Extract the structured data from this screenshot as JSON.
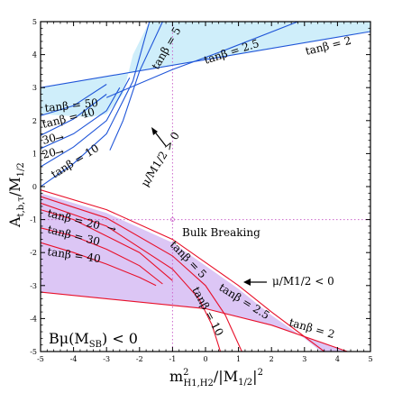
{
  "chart_data": {
    "type": "line",
    "xlim": [
      -5,
      5
    ],
    "ylim": [
      -5,
      5
    ],
    "xticks": [
      "-5",
      "-4",
      "-3",
      "-2",
      "-1",
      "0",
      "1",
      "2",
      "3",
      "4",
      "5"
    ],
    "yticks": [
      "-5",
      "-4",
      "-3",
      "-2",
      "-1",
      "0",
      "1",
      "2",
      "3",
      "4",
      "5"
    ],
    "xlabel_main": "m",
    "xlabel_sup": "2",
    "xlabel_sub": "H1,H2",
    "xlabel_rest": "/|M",
    "xlabel_sub2": "1/2",
    "xlabel_end": "|",
    "xlabel_sup2": "2",
    "ylabel_main": "A",
    "ylabel_sub": "t,b,τ",
    "ylabel_rest": "/M",
    "ylabel_sub2": "1/2",
    "reference_lines": {
      "x": -1,
      "y": -1,
      "color": "#cc66cc"
    },
    "colors": {
      "upper_fill": "#cfeefa",
      "lower_fill": "#dcc6f5",
      "upper_line": "#1f55d8",
      "lower_line": "#e8102a"
    },
    "upper_region": {
      "boundary_top": [
        [
          -5,
          3
        ],
        [
          5,
          4.7
        ]
      ],
      "boundary_bottom": [
        [
          -5,
          2.2
        ],
        [
          -3.5,
          2.1
        ],
        [
          -3,
          2.2
        ],
        [
          -2.5,
          2.8
        ],
        [
          -2.2,
          4
        ],
        [
          -1.7,
          5
        ]
      ],
      "curves": [
        {
          "name": "tanβ = 2",
          "points": [
            [
              -5,
              3
            ],
            [
              5,
              4.7
            ]
          ]
        },
        {
          "name": "tanβ = 2.5",
          "points": [
            [
              -3,
              2.7
            ],
            [
              -1,
              3.55
            ],
            [
              0.5,
              4.1
            ],
            [
              2.8,
              5
            ]
          ]
        },
        {
          "name": "tanβ = 5",
          "points": [
            [
              -2.9,
              1.1
            ],
            [
              -2.5,
              2.0
            ],
            [
              -2.0,
              3.5
            ],
            [
              -1.3,
              5
            ]
          ]
        },
        {
          "name": "tanβ = 10",
          "points": [
            [
              -5,
              0
            ],
            [
              -4,
              0.7
            ],
            [
              -3,
              1.6
            ],
            [
              -2.2,
              3.2
            ],
            [
              -1.7,
              5
            ]
          ]
        },
        {
          "name": "tanβ = 20",
          "points": [
            [
              -5,
              0.6
            ],
            [
              -4,
              1.2
            ],
            [
              -3,
              2.0
            ],
            [
              -2.3,
              3.3
            ]
          ]
        },
        {
          "name": "tanβ = 30",
          "points": [
            [
              -5,
              1.15
            ],
            [
              -4,
              1.6
            ],
            [
              -3,
              2.3
            ],
            [
              -2.6,
              3.0
            ]
          ]
        },
        {
          "name": "tanβ = 40",
          "points": [
            [
              -5,
              1.55
            ],
            [
              -4,
              2.05
            ],
            [
              -3,
              2.8
            ]
          ]
        },
        {
          "name": "tanβ = 50",
          "points": [
            [
              -5,
              2.15
            ],
            [
              -4,
              2.45
            ],
            [
              -3,
              3.1
            ]
          ]
        }
      ]
    },
    "lower_region": {
      "boundary_top": [
        [
          -5,
          -0.2
        ],
        [
          -3,
          -0.8
        ],
        [
          -1,
          -1.7
        ],
        [
          0,
          -2.4
        ],
        [
          1,
          -3.1
        ],
        [
          2,
          -3.9
        ],
        [
          3,
          -4.6
        ],
        [
          3.5,
          -5
        ]
      ],
      "boundary_bottom": [
        [
          -5,
          -3.2
        ],
        [
          0,
          -3.7
        ],
        [
          2,
          -4.2
        ],
        [
          4.3,
          -5
        ]
      ],
      "curves": [
        {
          "name": "tanβ = 2",
          "points": [
            [
              -5,
              -3.2
            ],
            [
              0,
              -3.7
            ],
            [
              2,
              -4.2
            ],
            [
              4.3,
              -5
            ]
          ]
        },
        {
          "name": "tanβ = 2.5",
          "points": [
            [
              -5,
              -0.1
            ],
            [
              -3,
              -0.7
            ],
            [
              -1,
              -1.6
            ],
            [
              0,
              -2.3
            ],
            [
              1,
              -3.0
            ],
            [
              2,
              -3.8
            ],
            [
              3,
              -4.55
            ],
            [
              3.6,
              -5
            ]
          ]
        },
        {
          "name": "tanβ = 5",
          "points": [
            [
              -5,
              -0.3
            ],
            [
              -3,
              -0.95
            ],
            [
              -1,
              -2.1
            ],
            [
              0,
              -3.0
            ],
            [
              0.6,
              -3.9
            ],
            [
              1.1,
              -5
            ]
          ]
        },
        {
          "name": "tanβ = 10",
          "points": [
            [
              -5,
              -0.5
            ],
            [
              -3,
              -1.2
            ],
            [
              -1,
              -2.5
            ],
            [
              -0.2,
              -3.4
            ],
            [
              0.2,
              -4.2
            ],
            [
              0.45,
              -5
            ]
          ]
        },
        {
          "name": "tanβ = 20",
          "points": [
            [
              -5,
              -0.7
            ],
            [
              -4,
              -1.0
            ],
            [
              -3,
              -1.5
            ],
            [
              -2,
              -2.0
            ],
            [
              -1,
              -2.85
            ]
          ]
        },
        {
          "name": "tanβ = 30",
          "points": [
            [
              -5,
              -1.25
            ],
            [
              -4,
              -1.5
            ],
            [
              -3,
              -1.9
            ],
            [
              -2,
              -2.4
            ],
            [
              -1.3,
              -2.95
            ]
          ]
        },
        {
          "name": "tanβ = 40",
          "points": [
            [
              -5,
              -1.7
            ],
            [
              -4,
              -2.0
            ],
            [
              -3,
              -2.35
            ],
            [
              -2,
              -2.75
            ],
            [
              -1.5,
              -3.0
            ]
          ]
        }
      ]
    },
    "annotations": {
      "tb50": "tanβ = 50",
      "tb40u": "tanβ = 40",
      "tb30u": "30",
      "tb20u": "20",
      "tb10u": "tanβ = 10",
      "tb5u": "tanβ = 5",
      "tb25u": "tanβ = 2.5",
      "tb2u": "tanβ = 2",
      "mu_pos": "μ/M1/2 > 0",
      "bulk": "Bulk Breaking",
      "tb20l": "tanβ = 20",
      "tb30l": "tanβ = 30",
      "tb40l": "tanβ = 40",
      "tb5l": "tanβ = 5",
      "tb10l": "tanβ = 10",
      "tb25l": "tanβ = 2.5",
      "tb2l": "tanβ = 2",
      "mu_neg": "μ/M1/2  < 0",
      "bmu": "Bμ(M",
      "bmu_sub": "SB",
      "bmu_end": ")  < 0",
      "arrow_sym": "→"
    }
  }
}
